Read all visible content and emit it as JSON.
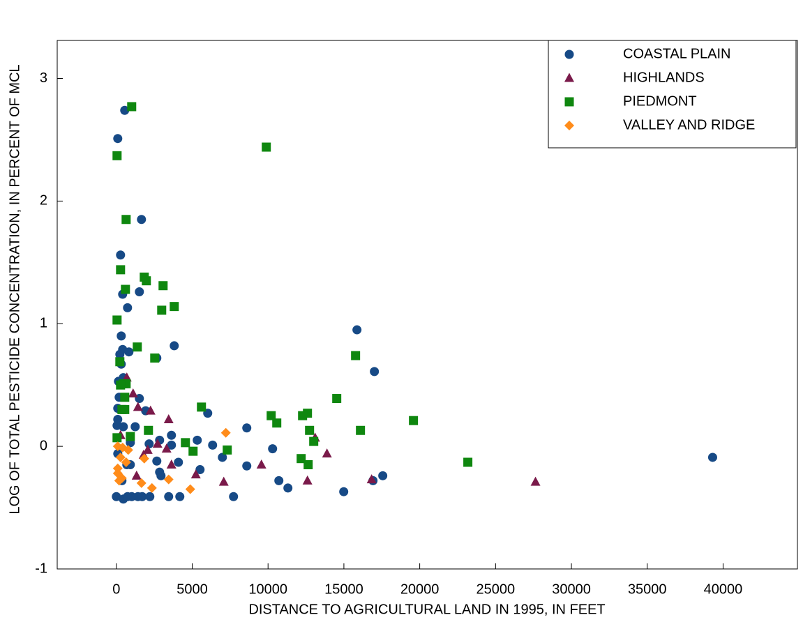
{
  "chart_data": {
    "type": "scatter",
    "xlabel": "DISTANCE TO AGRICULTURAL LAND IN 1995, IN FEET",
    "ylabel": "LOG OF TOTAL PESTICIDE CONCENTRATION, IN PERCENT OF MCL",
    "xlim": [
      -3900,
      44900
    ],
    "ylim": [
      -1,
      3.31
    ],
    "xticks": [
      0,
      5000,
      10000,
      15000,
      20000,
      25000,
      30000,
      35000,
      40000
    ],
    "yticks": [
      -1,
      0,
      1,
      2,
      3
    ],
    "grid": false,
    "legend": "upper right",
    "series": [
      {
        "name": "COASTAL PLAIN",
        "color": "#174a86",
        "marker": "circle",
        "x": [
          460,
          92,
          550,
          1655,
          276,
          414,
          736,
          1517,
          322,
          414,
          828,
          3816,
          2667,
          230,
          322,
          15862,
          17011,
          138,
          460,
          184,
          1517,
          92,
          6023,
          1931,
          92,
          1241,
          46,
          8598,
          460,
          3632,
          2851,
          5333,
          920,
          2161,
          3632,
          6345,
          10299,
          92,
          6989,
          39310,
          4092,
          5517,
          2667,
          920,
          2851,
          2943,
          8598,
          17563,
          16920,
          10713,
          11310,
          14989,
          0,
          736,
          1425,
          1701,
          2207,
          3448,
          4184,
          7724,
          1011,
          368,
          690
        ],
        "values": [
          -0.43,
          2.51,
          2.74,
          1.85,
          1.56,
          1.24,
          1.13,
          1.26,
          0.9,
          0.79,
          0.77,
          0.82,
          0.72,
          0.75,
          0.67,
          0.95,
          0.61,
          0.53,
          0.56,
          0.4,
          0.39,
          0.31,
          0.27,
          0.29,
          0.22,
          0.16,
          0.17,
          0.15,
          0.16,
          0.09,
          0.05,
          0.05,
          0.03,
          0.02,
          0.01,
          0.01,
          -0.02,
          -0.06,
          -0.09,
          -0.09,
          -0.13,
          -0.19,
          -0.12,
          -0.15,
          -0.21,
          -0.24,
          -0.16,
          -0.24,
          -0.28,
          -0.28,
          -0.34,
          -0.37,
          -0.41,
          -0.41,
          -0.41,
          -0.41,
          -0.41,
          -0.41,
          -0.41,
          -0.41,
          -0.41,
          -0.28,
          -0.15
        ]
      },
      {
        "name": "HIGHLANDS",
        "color": "#7a1a4a",
        "marker": "triangle",
        "x": [
          690,
          1103,
          1425,
          2253,
          3448,
          2713,
          3310,
          2069,
          1793,
          13885,
          9563,
          3632,
          5241,
          7080,
          12598,
          16828,
          27632,
          1333,
          13103,
          276
        ],
        "values": [
          0.56,
          0.43,
          0.32,
          0.29,
          0.22,
          0.02,
          -0.02,
          -0.03,
          -0.07,
          -0.06,
          -0.15,
          -0.15,
          -0.23,
          -0.29,
          -0.28,
          -0.27,
          -0.29,
          -0.24,
          0.07,
          0.09
        ]
      },
      {
        "name": "PIEDMONT",
        "color": "#0f870f",
        "marker": "square",
        "x": [
          1011,
          46,
          9885,
          644,
          276,
          1839,
          1977,
          3080,
          598,
          3816,
          2989,
          46,
          1379,
          2529,
          15770,
          230,
          460,
          644,
          276,
          552,
          14529,
          5609,
          368,
          552,
          12598,
          19586,
          12276,
          10207,
          10575,
          2115,
          12736,
          16092,
          920,
          46,
          4552,
          13011,
          7310,
          5057,
          12184,
          12644,
          23172
        ],
        "values": [
          2.77,
          2.37,
          2.44,
          1.85,
          1.44,
          1.38,
          1.35,
          1.31,
          1.28,
          1.14,
          1.11,
          1.03,
          0.81,
          0.72,
          0.74,
          0.69,
          0.51,
          0.51,
          0.5,
          0.4,
          0.39,
          0.32,
          0.3,
          0.3,
          0.27,
          0.21,
          0.25,
          0.25,
          0.19,
          0.13,
          0.13,
          0.13,
          0.08,
          0.07,
          0.03,
          0.04,
          -0.03,
          -0.04,
          -0.1,
          -0.15,
          -0.13
        ]
      },
      {
        "name": "VALLEY AND RIDGE",
        "color": "#ff8c1a",
        "marker": "diamond",
        "x": [
          7218,
          92,
          414,
          782,
          276,
          644,
          1839,
          92,
          184,
          368,
          1655,
          2345,
          3448,
          4874,
          92
        ],
        "values": [
          0.11,
          0,
          -0.01,
          -0.03,
          -0.09,
          -0.13,
          -0.1,
          -0.22,
          -0.28,
          -0.26,
          -0.3,
          -0.34,
          -0.27,
          -0.35,
          -0.18
        ]
      }
    ]
  }
}
